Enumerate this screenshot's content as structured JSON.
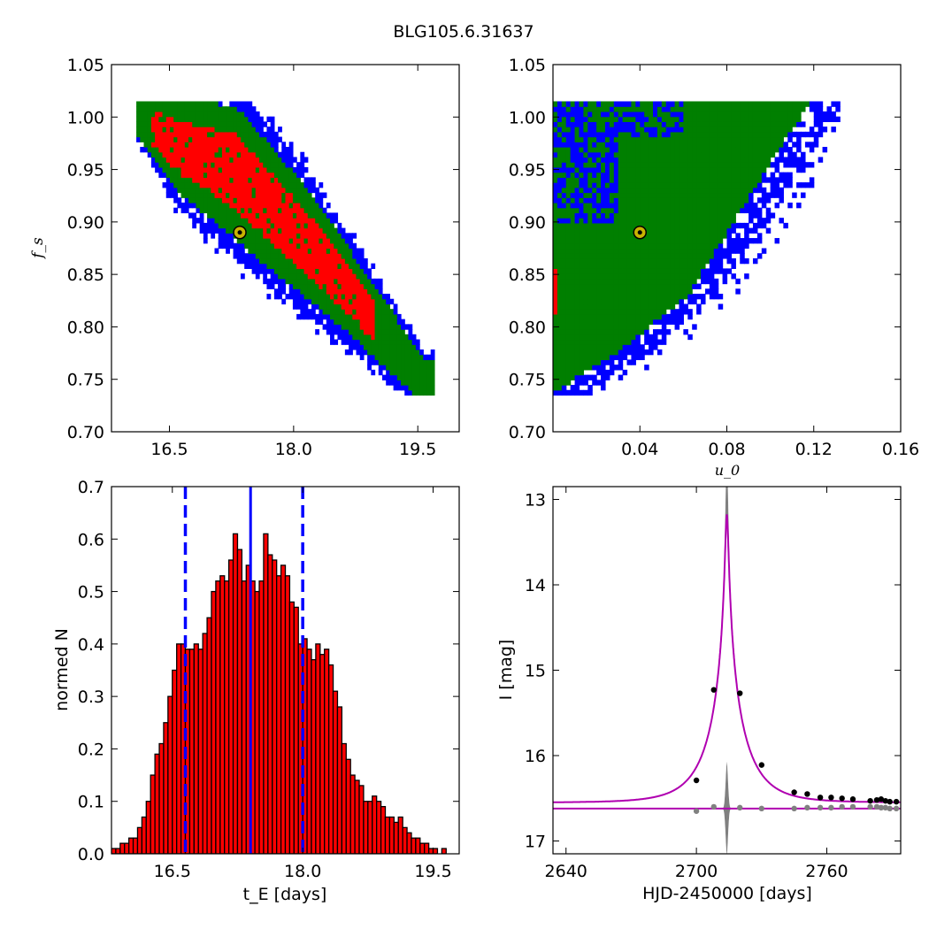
{
  "figure_title": "BLG105.6.31637",
  "chart_data": [
    {
      "id": "fs_vs_tE",
      "type": "heatmap",
      "xlabel": "",
      "ylabel": "f_s",
      "xlim": [
        15.8,
        20.0
      ],
      "ylim": [
        0.7,
        1.05
      ],
      "xticks": [
        16.5,
        18.0,
        19.5
      ],
      "xtick_labels": [
        "16.5",
        "18.0",
        "19.5"
      ],
      "yticks": [
        0.7,
        0.75,
        0.8,
        0.85,
        0.9,
        0.95,
        1.0,
        1.05
      ],
      "ytick_labels": [
        "0.70",
        "0.75",
        "0.80",
        "0.85",
        "0.90",
        "0.95",
        "1.00",
        "1.05"
      ],
      "colors": {
        "outer": "#0000ff",
        "middle": "#007f00",
        "inner": "#ff0000"
      },
      "band_upper": [
        [
          16.1,
          1.015
        ],
        [
          17.3,
          1.015
        ],
        [
          18.2,
          0.93
        ],
        [
          19.6,
          0.76
        ]
      ],
      "band_lower": [
        [
          16.1,
          0.99
        ],
        [
          16.6,
          0.93
        ],
        [
          17.6,
          0.86
        ],
        [
          18.6,
          0.8
        ],
        [
          19.5,
          0.74
        ]
      ],
      "best_fit": {
        "x": 17.35,
        "y": 0.89,
        "color": "#c8b400"
      }
    },
    {
      "id": "fs_vs_u0",
      "type": "heatmap",
      "xlabel": "u_0",
      "ylabel": "",
      "xlim": [
        0.0,
        0.16
      ],
      "ylim": [
        0.7,
        1.05
      ],
      "xticks": [
        0.04,
        0.08,
        0.12,
        0.16
      ],
      "xtick_labels": [
        "0.04",
        "0.08",
        "0.12",
        "0.16"
      ],
      "yticks": [
        0.7,
        0.75,
        0.8,
        0.85,
        0.9,
        0.95,
        1.0,
        1.05
      ],
      "ytick_labels": [
        "0.70",
        "0.75",
        "0.80",
        "0.85",
        "0.90",
        "0.95",
        "1.00",
        "1.05"
      ],
      "colors": {
        "outer": "#0000ff",
        "middle": "#007f00",
        "inner": "#ff0000"
      },
      "region": [
        [
          0.0,
          1.015
        ],
        [
          0.127,
          1.015
        ],
        [
          0.112,
          0.97
        ],
        [
          0.07,
          0.83
        ],
        [
          0.04,
          0.78
        ],
        [
          0.01,
          0.74
        ],
        [
          0.0,
          0.74
        ]
      ],
      "best_fit": {
        "x": 0.04,
        "y": 0.89,
        "color": "#c8b400"
      }
    },
    {
      "id": "tE_histogram",
      "type": "bar",
      "xlabel": "t_E  [days]",
      "ylabel": "normed N",
      "xlim": [
        15.8,
        19.8
      ],
      "ylim": [
        0.0,
        0.7
      ],
      "xticks": [
        16.5,
        18.0,
        19.5
      ],
      "xtick_labels": [
        "16.5",
        "18.0",
        "19.5"
      ],
      "yticks": [
        0.0,
        0.1,
        0.2,
        0.3,
        0.4,
        0.5,
        0.6,
        0.7
      ],
      "ytick_labels": [
        "0.0",
        "0.1",
        "0.2",
        "0.3",
        "0.4",
        "0.5",
        "0.6",
        "0.7"
      ],
      "bar_color": "#ff0000",
      "bin_start": 15.8,
      "bin_width": 0.05,
      "values": [
        0.01,
        0.01,
        0.02,
        0.02,
        0.03,
        0.03,
        0.05,
        0.07,
        0.1,
        0.15,
        0.19,
        0.21,
        0.25,
        0.3,
        0.35,
        0.4,
        0.4,
        0.39,
        0.39,
        0.4,
        0.39,
        0.42,
        0.45,
        0.5,
        0.52,
        0.53,
        0.52,
        0.56,
        0.61,
        0.58,
        0.52,
        0.55,
        0.52,
        0.5,
        0.52,
        0.61,
        0.57,
        0.56,
        0.53,
        0.55,
        0.53,
        0.48,
        0.47,
        0.4,
        0.41,
        0.39,
        0.37,
        0.4,
        0.38,
        0.39,
        0.36,
        0.31,
        0.28,
        0.21,
        0.18,
        0.15,
        0.14,
        0.13,
        0.1,
        0.1,
        0.11,
        0.1,
        0.09,
        0.07,
        0.07,
        0.06,
        0.07,
        0.05,
        0.04,
        0.03,
        0.03,
        0.02,
        0.02,
        0.01,
        0.01,
        0.0,
        0.01,
        0.0
      ],
      "median": 17.4,
      "lower": 16.65,
      "upper": 18.0,
      "line_color": "#0000ff"
    },
    {
      "id": "light_curve",
      "type": "scatter",
      "xlabel": "HJD-2450000 [days]",
      "ylabel": "I [mag]",
      "xlim": [
        2634,
        2794
      ],
      "ylim": [
        17.15,
        12.85
      ],
      "xticks": [
        2640,
        2700,
        2760
      ],
      "xtick_labels": [
        "2640",
        "2700",
        "2760"
      ],
      "yticks": [
        13,
        14,
        15,
        16,
        17
      ],
      "ytick_labels": [
        "13",
        "14",
        "15",
        "16",
        "17"
      ],
      "model": {
        "t0": 2714.0,
        "tE": 17.4,
        "u0": 0.04,
        "fs": 0.89,
        "I_base": 16.55,
        "color": "#b000b0"
      },
      "residual_baseline": 16.62,
      "points": [
        {
          "x": 2700,
          "y": 16.29
        },
        {
          "x": 2708,
          "y": 15.23
        },
        {
          "x": 2720,
          "y": 15.27
        },
        {
          "x": 2730,
          "y": 16.11
        },
        {
          "x": 2745,
          "y": 16.43
        },
        {
          "x": 2751,
          "y": 16.45
        },
        {
          "x": 2757,
          "y": 16.49
        },
        {
          "x": 2762,
          "y": 16.49
        },
        {
          "x": 2767,
          "y": 16.5
        },
        {
          "x": 2772,
          "y": 16.51
        },
        {
          "x": 2780,
          "y": 16.53
        },
        {
          "x": 2783,
          "y": 16.52
        },
        {
          "x": 2785,
          "y": 16.51
        },
        {
          "x": 2787,
          "y": 16.53
        },
        {
          "x": 2789,
          "y": 16.54
        },
        {
          "x": 2792,
          "y": 16.54
        }
      ],
      "residual_points": [
        {
          "x": 2700,
          "y": 16.65
        },
        {
          "x": 2708,
          "y": 16.6
        },
        {
          "x": 2720,
          "y": 16.61
        },
        {
          "x": 2730,
          "y": 16.62
        },
        {
          "x": 2745,
          "y": 16.62
        },
        {
          "x": 2751,
          "y": 16.61
        },
        {
          "x": 2757,
          "y": 16.61
        },
        {
          "x": 2762,
          "y": 16.61
        },
        {
          "x": 2767,
          "y": 16.6
        },
        {
          "x": 2772,
          "y": 16.6
        },
        {
          "x": 2780,
          "y": 16.6
        },
        {
          "x": 2783,
          "y": 16.6
        },
        {
          "x": 2785,
          "y": 16.61
        },
        {
          "x": 2787,
          "y": 16.61
        },
        {
          "x": 2789,
          "y": 16.62
        },
        {
          "x": 2792,
          "y": 16.62
        }
      ]
    }
  ]
}
